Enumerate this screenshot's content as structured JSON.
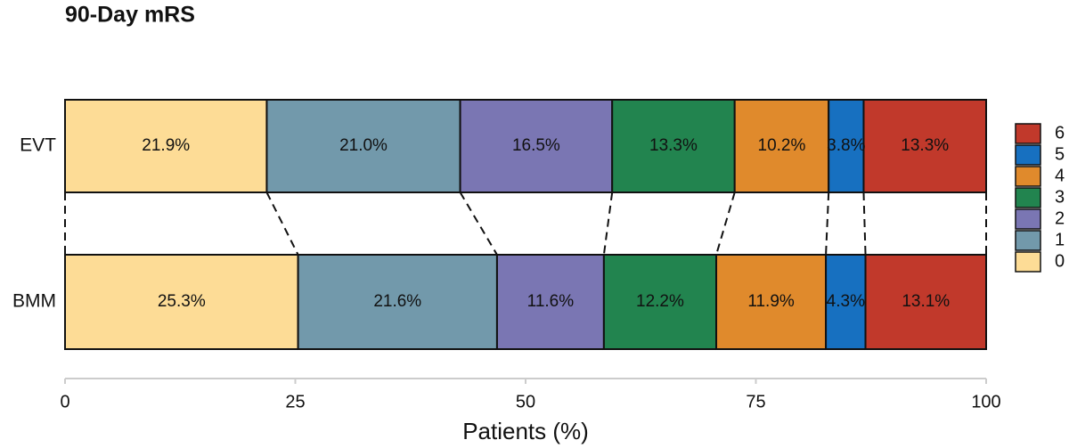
{
  "chart_data": {
    "type": "stacked-bar",
    "orientation": "horizontal",
    "title": "90-Day mRS",
    "xlabel": "Patients (%)",
    "categories": [
      "EVT",
      "BMM"
    ],
    "series": [
      {
        "name": "0",
        "color": "#fddc96",
        "values": [
          21.9,
          25.3
        ],
        "value_labels": [
          "21.9%",
          "25.3%"
        ]
      },
      {
        "name": "1",
        "color": "#7299ab",
        "values": [
          21.0,
          21.6
        ],
        "value_labels": [
          "21.0%",
          "21.6%"
        ]
      },
      {
        "name": "2",
        "color": "#7a76b3",
        "values": [
          16.5,
          11.6
        ],
        "value_labels": [
          "16.5%",
          "11.6%"
        ]
      },
      {
        "name": "3",
        "color": "#22844f",
        "values": [
          13.3,
          12.2
        ],
        "value_labels": [
          "13.3%",
          "12.2%"
        ]
      },
      {
        "name": "4",
        "color": "#e08a2c",
        "values": [
          10.2,
          11.9
        ],
        "value_labels": [
          "10.2%",
          "11.9%"
        ]
      },
      {
        "name": "5",
        "color": "#1770c0",
        "values": [
          3.8,
          4.3
        ],
        "value_labels": [
          "3.8%",
          "4.3%"
        ]
      },
      {
        "name": "6",
        "color": "#c1392b",
        "values": [
          13.3,
          13.1
        ],
        "value_labels": [
          "13.3%",
          "13.1%"
        ]
      }
    ],
    "xlim": [
      0,
      100
    ],
    "xticks": [
      0,
      25,
      50,
      75,
      100
    ],
    "grid": false,
    "legend": "right"
  }
}
